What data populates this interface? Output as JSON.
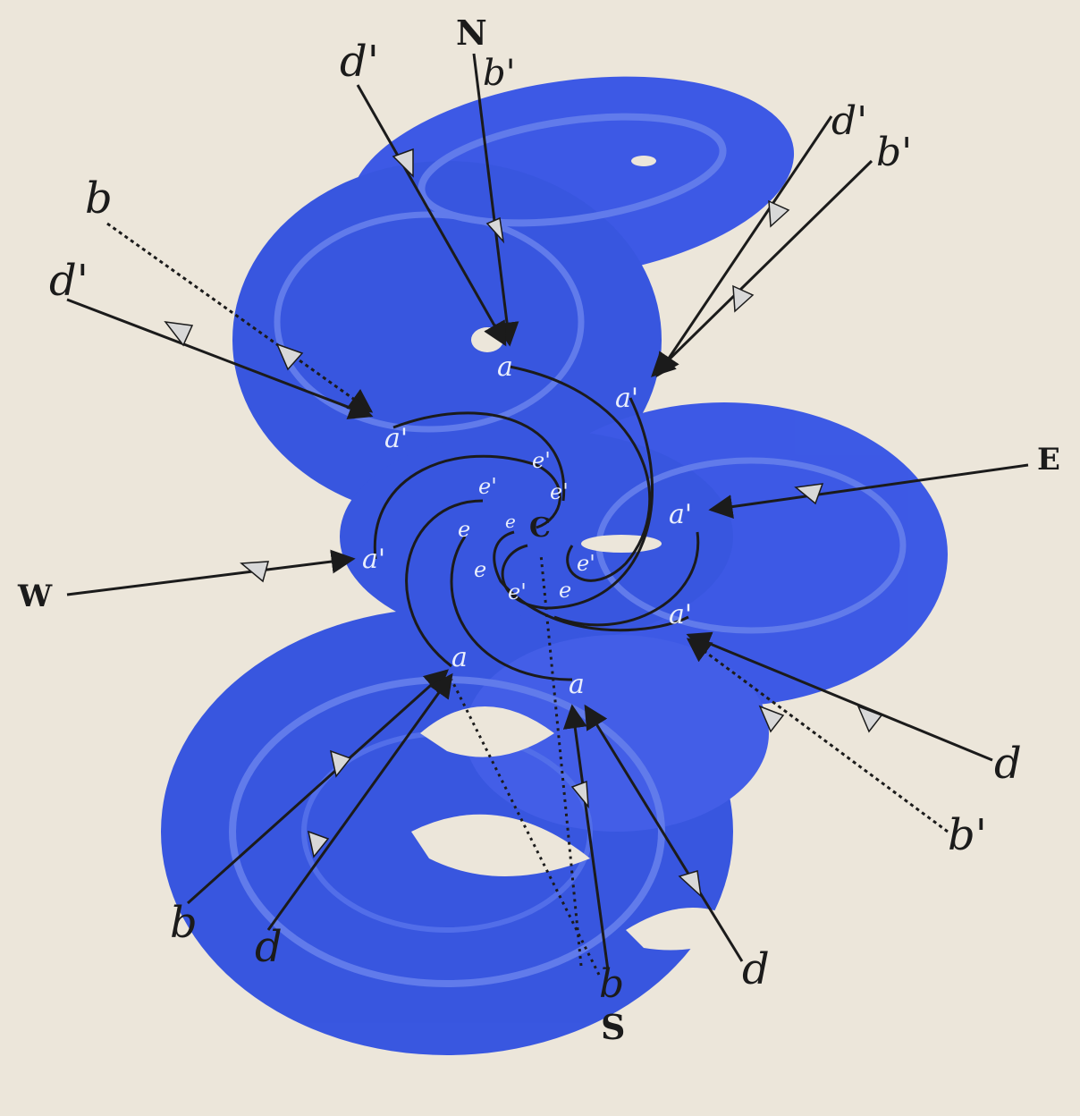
{
  "diagram": {
    "colors": {
      "background": "#ece6da",
      "wash": "#2f4fe0",
      "wash_light": "#5a76ec",
      "ink": "#1b1b1b"
    },
    "compass": {
      "north": "N",
      "south": "S",
      "east": "E",
      "west": "W",
      "center": "C"
    },
    "outer_labels": {
      "d_prime": "d'",
      "b_prime": "b'",
      "b": "b",
      "d": "d"
    },
    "inner_labels": {
      "a": "a",
      "a_prime": "a'",
      "e": "e",
      "e_prime": "e'"
    }
  }
}
